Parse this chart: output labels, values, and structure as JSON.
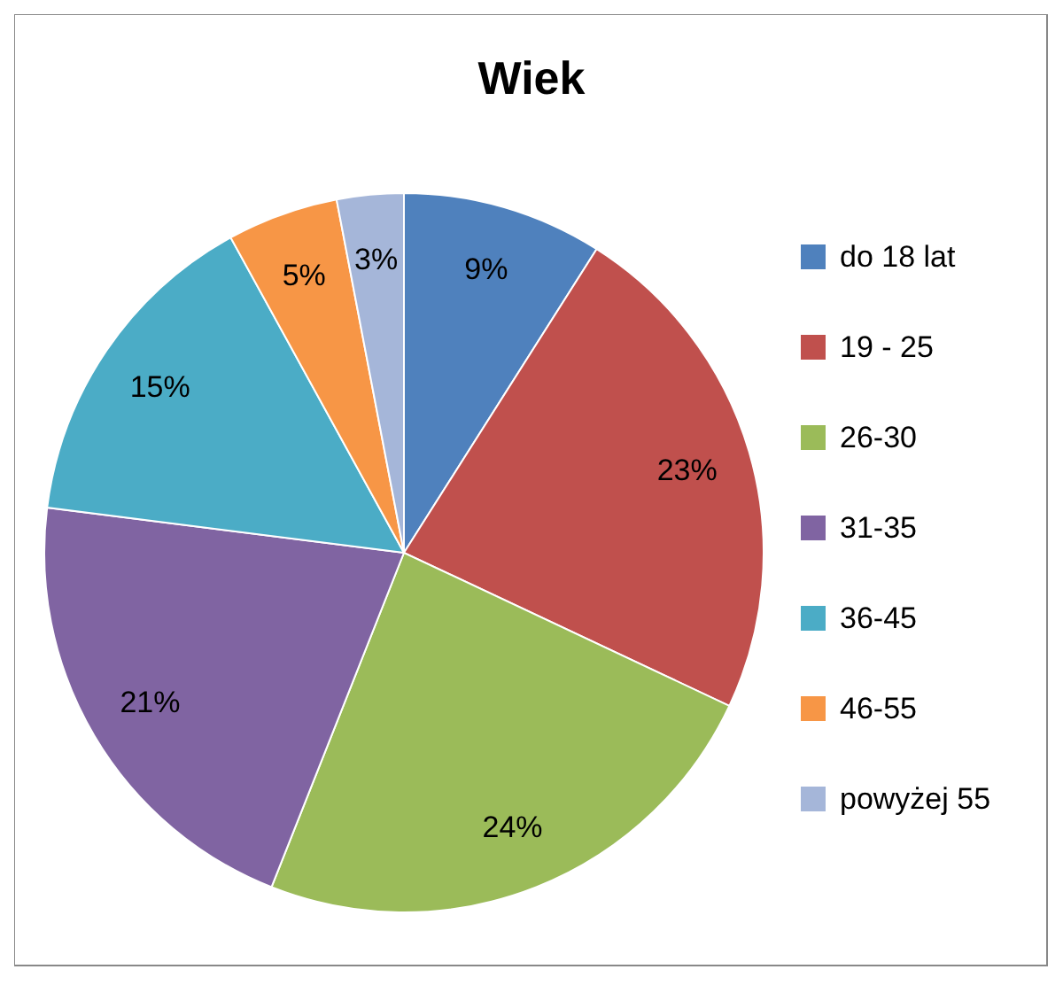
{
  "chart_data": {
    "type": "pie",
    "title": "Wiek",
    "categories": [
      "do 18 lat",
      "19 - 25",
      "26-30",
      "31-35",
      "36-45",
      "46-55",
      "powyżej 55"
    ],
    "values": [
      9,
      23,
      24,
      21,
      15,
      5,
      3
    ],
    "value_labels": [
      "9%",
      "23%",
      "24%",
      "21%",
      "15%",
      "5%",
      "3%"
    ],
    "colors": [
      "#4f81bd",
      "#c0504d",
      "#9bbb59",
      "#8064a2",
      "#4bacc6",
      "#f79646",
      "#a5b6d9"
    ],
    "legend": "right"
  }
}
